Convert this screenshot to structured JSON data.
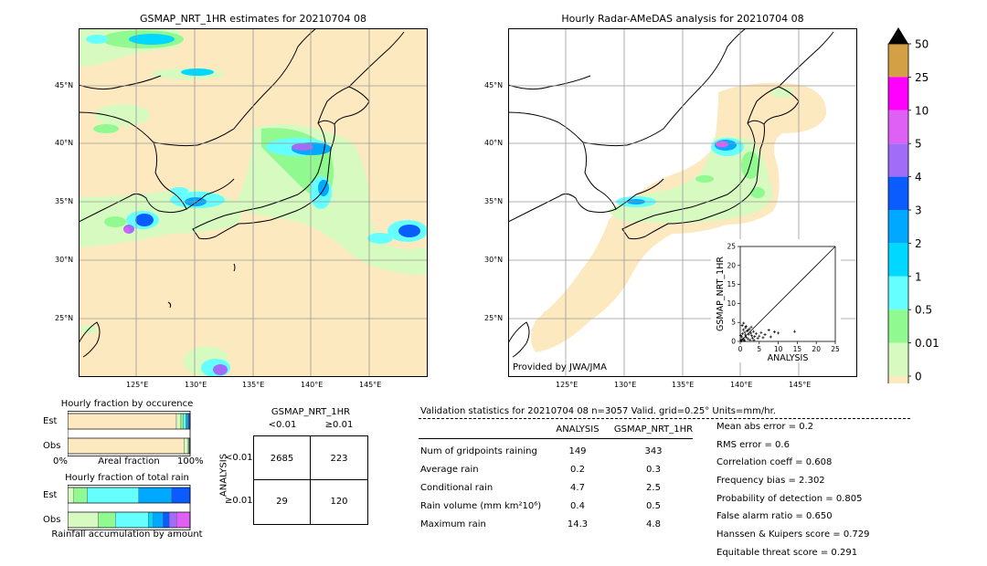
{
  "left_map": {
    "title": "GSMAP_NRT_1HR estimates for 20210704 08",
    "lat_labels": [
      "45°N",
      "40°N",
      "35°N",
      "30°N",
      "25°N"
    ],
    "lon_labels": [
      "125°E",
      "130°E",
      "135°E",
      "140°E",
      "145°E"
    ]
  },
  "right_map": {
    "title": "Hourly Radar-AMeDAS analysis for 20210704 08",
    "lat_labels": [
      "45°N",
      "40°N",
      "35°N",
      "30°N",
      "25°N"
    ],
    "lon_labels": [
      "125°E",
      "130°E",
      "135°E",
      "140°E",
      "145°E"
    ],
    "credit": "Provided by JWA/JMA"
  },
  "colorbar": {
    "levels": [
      "50",
      "25",
      "10",
      "5",
      "4",
      "3",
      "2",
      "1",
      "0.5",
      "0.01",
      "0"
    ],
    "colors": [
      "#d4a045",
      "#ff00ff",
      "#df60f5",
      "#a06cf8",
      "#0a5cff",
      "#00a9ff",
      "#00d8ff",
      "#66ffff",
      "#90f990",
      "#d6fac0",
      "#fde9bf"
    ]
  },
  "chart_data": [
    {
      "type": "scatter",
      "xlabel": "ANALYSIS",
      "ylabel": "GSMAP_NRT_1HR",
      "xlim": [
        0,
        25
      ],
      "ylim": [
        0,
        25
      ],
      "x_ticks": [
        "0",
        "5",
        "10",
        "15",
        "20",
        "25"
      ],
      "y_ticks": [
        "0",
        "5",
        "10",
        "15",
        "20",
        "25"
      ],
      "points": [
        [
          0.2,
          0.3
        ],
        [
          0.4,
          1.2
        ],
        [
          0.6,
          2.0
        ],
        [
          0.8,
          3.1
        ],
        [
          1.0,
          0.5
        ],
        [
          1.2,
          2.4
        ],
        [
          1.4,
          3.6
        ],
        [
          1.6,
          1.1
        ],
        [
          1.8,
          2.8
        ],
        [
          2.0,
          0.7
        ],
        [
          2.2,
          1.9
        ],
        [
          2.4,
          3.3
        ],
        [
          2.6,
          0.4
        ],
        [
          2.8,
          2.2
        ],
        [
          3.0,
          1.5
        ],
        [
          3.2,
          0.9
        ],
        [
          3.5,
          2.6
        ],
        [
          3.8,
          1.3
        ],
        [
          4.2,
          2.0
        ],
        [
          4.6,
          0.8
        ],
        [
          5.0,
          1.4
        ],
        [
          5.5,
          2.3
        ],
        [
          6.0,
          1.0
        ],
        [
          6.5,
          1.8
        ],
        [
          7.5,
          3.0
        ],
        [
          8.0,
          1.2
        ],
        [
          9.0,
          2.5
        ],
        [
          10.0,
          2.2
        ],
        [
          14.3,
          2.6
        ],
        [
          0.3,
          0.1
        ],
        [
          0.5,
          4.2
        ],
        [
          0.9,
          4.8
        ],
        [
          1.1,
          0.2
        ],
        [
          1.5,
          4.0
        ],
        [
          0.1,
          1.6
        ],
        [
          0.7,
          0.6
        ],
        [
          1.3,
          1.7
        ],
        [
          2.1,
          2.9
        ],
        [
          2.9,
          3.8
        ],
        [
          3.6,
          0.3
        ]
      ]
    },
    {
      "type": "bar",
      "title": "Hourly fraction by occurence",
      "categories": [
        "Est",
        "Obs"
      ],
      "xlabel": "Areal fraction",
      "x_ticks": [
        "0%",
        "100%"
      ],
      "series": [
        {
          "color": "#fde9bf",
          "values": [
            0.888,
            0.951
          ]
        },
        {
          "color": "#d6fac0",
          "values": [
            0.037,
            0.033
          ]
        },
        {
          "color": "#90f990",
          "values": [
            0.022,
            0.005
          ]
        },
        {
          "color": "#66ffff",
          "values": [
            0.018,
            0.004
          ]
        },
        {
          "color": "#00d8ff",
          "values": [
            0.012,
            0.003
          ]
        },
        {
          "color": "#00a9ff",
          "values": [
            0.009,
            0.002
          ]
        },
        {
          "color": "#0a5cff",
          "values": [
            0.008,
            0.001
          ]
        },
        {
          "color": "#a06cf8",
          "values": [
            0.006,
            0.001
          ]
        }
      ]
    },
    {
      "type": "bar",
      "title": "Hourly fraction of total rain",
      "categories": [
        "Est",
        "Obs"
      ],
      "xlabel": "Rainfall accumulation by amount",
      "series": [
        {
          "color": "#d6fac0",
          "values": [
            0.05,
            0.25
          ]
        },
        {
          "color": "#90f990",
          "values": [
            0.11,
            0.14
          ]
        },
        {
          "color": "#66ffff",
          "values": [
            0.42,
            0.27
          ]
        },
        {
          "color": "#00d8ff",
          "values": [
            0.0,
            0.04
          ]
        },
        {
          "color": "#00a9ff",
          "values": [
            0.27,
            0.08
          ]
        },
        {
          "color": "#0a5cff",
          "values": [
            0.15,
            0.05
          ]
        },
        {
          "color": "#a06cf8",
          "values": [
            0.0,
            0.06
          ]
        },
        {
          "color": "#df60f5",
          "values": [
            0.0,
            0.11
          ]
        }
      ]
    }
  ],
  "contingency": {
    "title": "GSMAP_NRT_1HR",
    "col_headers": [
      "<0.01",
      "≥0.01"
    ],
    "row_label": "ANALYSIS",
    "row_headers": [
      "<0.01",
      "≥0.01"
    ],
    "cells": [
      [
        "2685",
        "223"
      ],
      [
        "29",
        "120"
      ]
    ]
  },
  "validation": {
    "header": "Validation statistics for 20210704 08  n=3057 Valid. grid=0.25° Units=mm/hr.",
    "col_analysis": "ANALYSIS",
    "col_gsmap": "GSMAP_NRT_1HR",
    "rows": [
      {
        "label": "Num of gridpoints raining",
        "analysis": "149",
        "gsmap": "343"
      },
      {
        "label": "Average rain",
        "analysis": "0.2",
        "gsmap": "0.3"
      },
      {
        "label": "Conditional rain",
        "analysis": "4.7",
        "gsmap": "2.5"
      },
      {
        "label": "Rain volume (mm km²10⁶)",
        "analysis": "0.4",
        "gsmap": "0.5"
      },
      {
        "label": "Maximum rain",
        "analysis": "14.3",
        "gsmap": "4.8"
      }
    ],
    "scores": [
      "Mean abs error =    0.2",
      "RMS error =    0.6",
      "Correlation coeff =  0.608",
      "Frequency bias =  2.302",
      "Probability of detection =  0.805",
      "False alarm ratio =  0.650",
      "Hanssen & Kuipers score =  0.729",
      "Equitable threat score =  0.291"
    ]
  }
}
